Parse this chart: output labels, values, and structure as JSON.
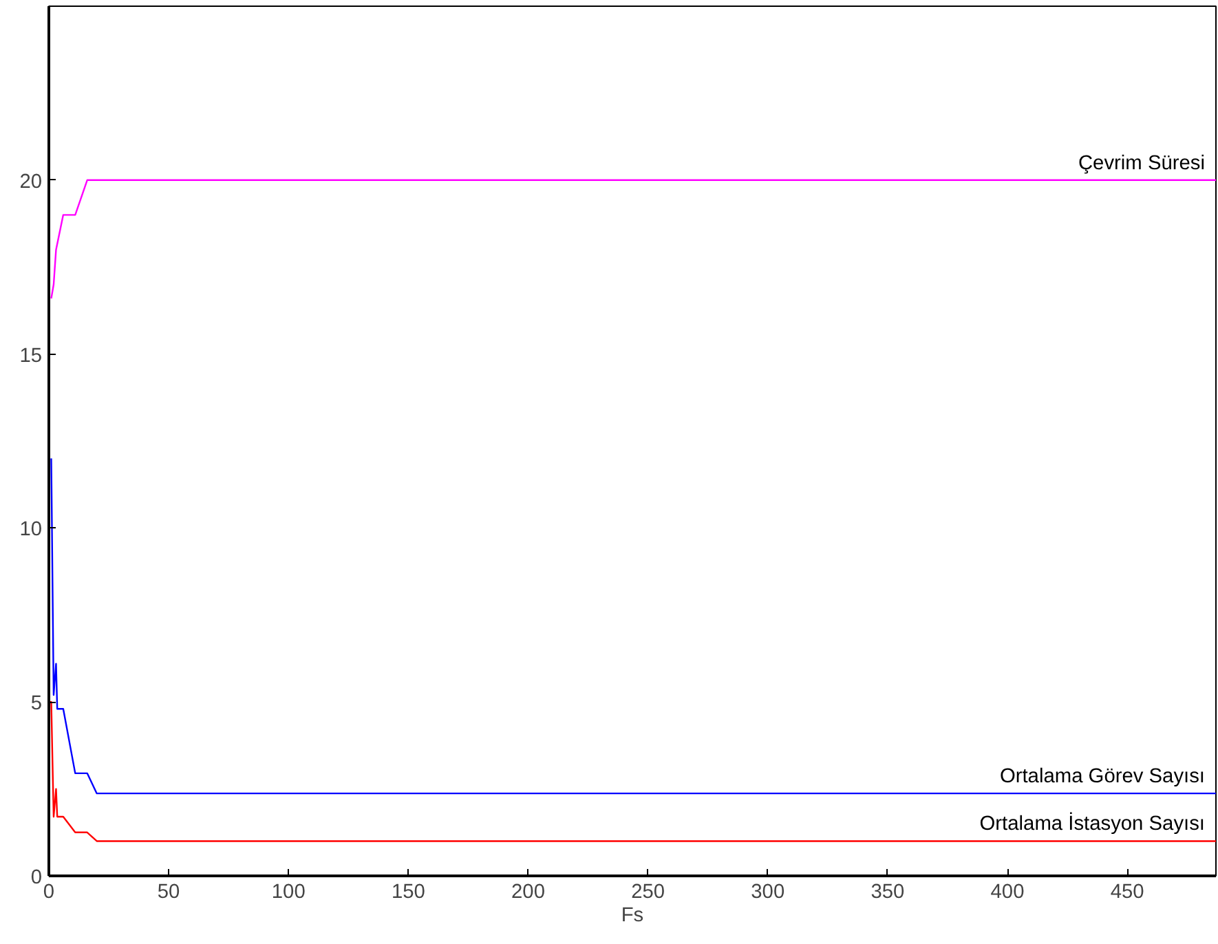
{
  "chart_data": {
    "type": "line",
    "xlabel": "Fs",
    "xlim": [
      0,
      487
    ],
    "ylim": [
      0,
      25
    ],
    "xticks": [
      0,
      50,
      100,
      150,
      200,
      250,
      300,
      350,
      400,
      450
    ],
    "yticks": [
      0,
      5,
      10,
      15,
      20
    ],
    "grid": false,
    "legend": false,
    "marker": "none",
    "line_style": "solid",
    "series": [
      {
        "name": "Çevrim Süresi",
        "color": "#ff00ff",
        "x": [
          1,
          2,
          3,
          6,
          11,
          16,
          487
        ],
        "values": [
          16.6,
          17,
          18,
          19,
          19,
          20,
          20
        ]
      },
      {
        "name": "Ortalama Görev Sayısı",
        "color": "#0000ff",
        "x": [
          1,
          2,
          3,
          3.5,
          6,
          11,
          16,
          20,
          487
        ],
        "values": [
          12,
          5.2,
          6.1,
          4.8,
          4.8,
          2.95,
          2.95,
          2.37,
          2.37
        ]
      },
      {
        "name": "Ortalama İstasyon Sayısı",
        "color": "#ff0000",
        "x": [
          0.5,
          1,
          2,
          3,
          3.5,
          6,
          11,
          16,
          20,
          487
        ],
        "values": [
          5,
          5,
          1.7,
          2.5,
          1.7,
          1.7,
          1.25,
          1.25,
          1.0,
          1.0
        ]
      }
    ]
  }
}
